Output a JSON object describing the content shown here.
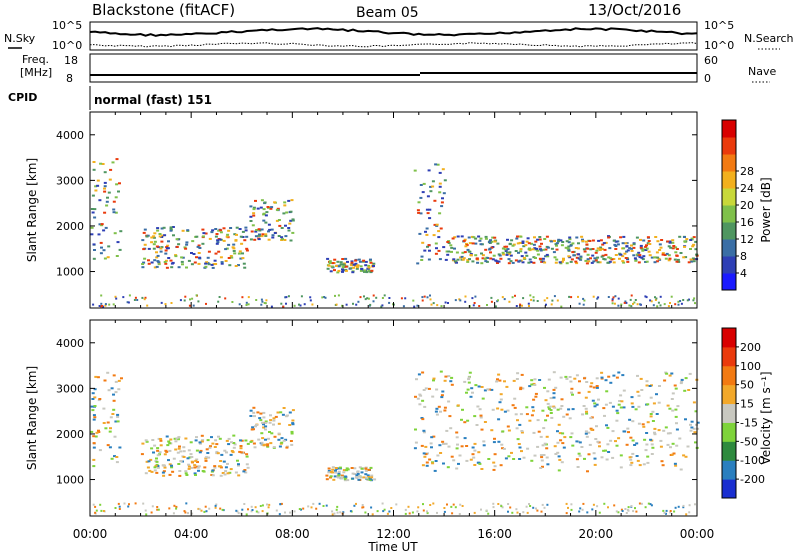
{
  "header": {
    "station": "Blackstone (fitACF)",
    "beam": "Beam 05",
    "date": "13/Oct/2016"
  },
  "noise_panel": {
    "left_label": "N.Sky",
    "right_label": "N.Search",
    "y_ticks": [
      "10^5",
      "10^0"
    ]
  },
  "freq_panel": {
    "left_label_line1": "Freq.",
    "left_label_line2": "[MHz]",
    "left_ticks": [
      "18",
      "8"
    ],
    "right_label": "Nave",
    "right_ticks": [
      "60",
      "0"
    ]
  },
  "cpid": {
    "label": "CPID",
    "value": "normal (fast) 151"
  },
  "chart_data": [
    {
      "type": "heatmap",
      "title": "",
      "ylabel": "Slant Range [km]",
      "ylim": [
        200,
        4500
      ],
      "y_ticks": [
        1000,
        2000,
        3000,
        4000
      ],
      "x_ticks": [
        "00:00",
        "04:00",
        "08:00",
        "12:00",
        "16:00",
        "20:00",
        "00:00"
      ],
      "colorbar": {
        "label": "Power [dB]",
        "ticks": [
          "4",
          "8",
          "12",
          "16",
          "20",
          "24",
          "28"
        ],
        "colors": [
          "#1a1aff",
          "#2e3fb5",
          "#3a6ea5",
          "#4f9660",
          "#7fc04a",
          "#c8d83a",
          "#f2b01e",
          "#f27a12",
          "#ea3a0c",
          "#d80000"
        ]
      },
      "echo_bands": [
        {
          "t_start": 0.0,
          "t_end": 1.2,
          "range_start": 1300,
          "range_end": 3500,
          "level": "mid-high"
        },
        {
          "t_start": 2.0,
          "t_end": 6.2,
          "range_start": 1100,
          "range_end": 2000,
          "level": "low"
        },
        {
          "t_start": 6.3,
          "t_end": 8.0,
          "range_start": 1700,
          "range_end": 2600,
          "level": "low"
        },
        {
          "t_start": 9.3,
          "t_end": 11.2,
          "range_start": 1000,
          "range_end": 1300,
          "level": "low"
        },
        {
          "t_start": 12.8,
          "t_end": 14.0,
          "range_start": 1200,
          "range_end": 3400,
          "level": "high"
        },
        {
          "t_start": 14.0,
          "t_end": 24.0,
          "range_start": 1200,
          "range_end": 1800,
          "level": "high"
        }
      ]
    },
    {
      "type": "heatmap",
      "title": "",
      "ylabel": "Slant Range [km]",
      "xlabel": "Time UT",
      "ylim": [
        200,
        4500
      ],
      "y_ticks": [
        1000,
        2000,
        3000,
        4000
      ],
      "x_ticks": [
        "00:00",
        "04:00",
        "08:00",
        "12:00",
        "16:00",
        "20:00",
        "00:00"
      ],
      "colorbar": {
        "label": "Velocity [m s⁻¹]",
        "ticks": [
          "200",
          "100",
          "50",
          "15",
          "-15",
          "-50",
          "-100",
          "-200"
        ],
        "colors": [
          "#1a2fd0",
          "#2a7fbf",
          "#2e8a3e",
          "#7ed33a",
          "#c8c8c0",
          "#f2a82a",
          "#f27a12",
          "#ea3a0c",
          "#d80000"
        ]
      },
      "echo_bands": [
        {
          "t_start": 0.0,
          "t_end": 1.2,
          "range_start": 1300,
          "range_end": 3500,
          "velocity": "gray/-15 to 15"
        },
        {
          "t_start": 2.0,
          "t_end": 6.2,
          "range_start": 1100,
          "range_end": 2000,
          "velocity": "-50 to -100"
        },
        {
          "t_start": 6.3,
          "t_end": 8.0,
          "range_start": 1700,
          "range_end": 2600,
          "velocity": "-50 to -100"
        },
        {
          "t_start": 9.3,
          "t_end": 11.2,
          "range_start": 1000,
          "range_end": 1300,
          "velocity": "mixed"
        },
        {
          "t_start": 12.8,
          "t_end": 24.0,
          "range_start": 1200,
          "range_end": 3400,
          "velocity": "gray/-15 to 15"
        }
      ]
    }
  ]
}
